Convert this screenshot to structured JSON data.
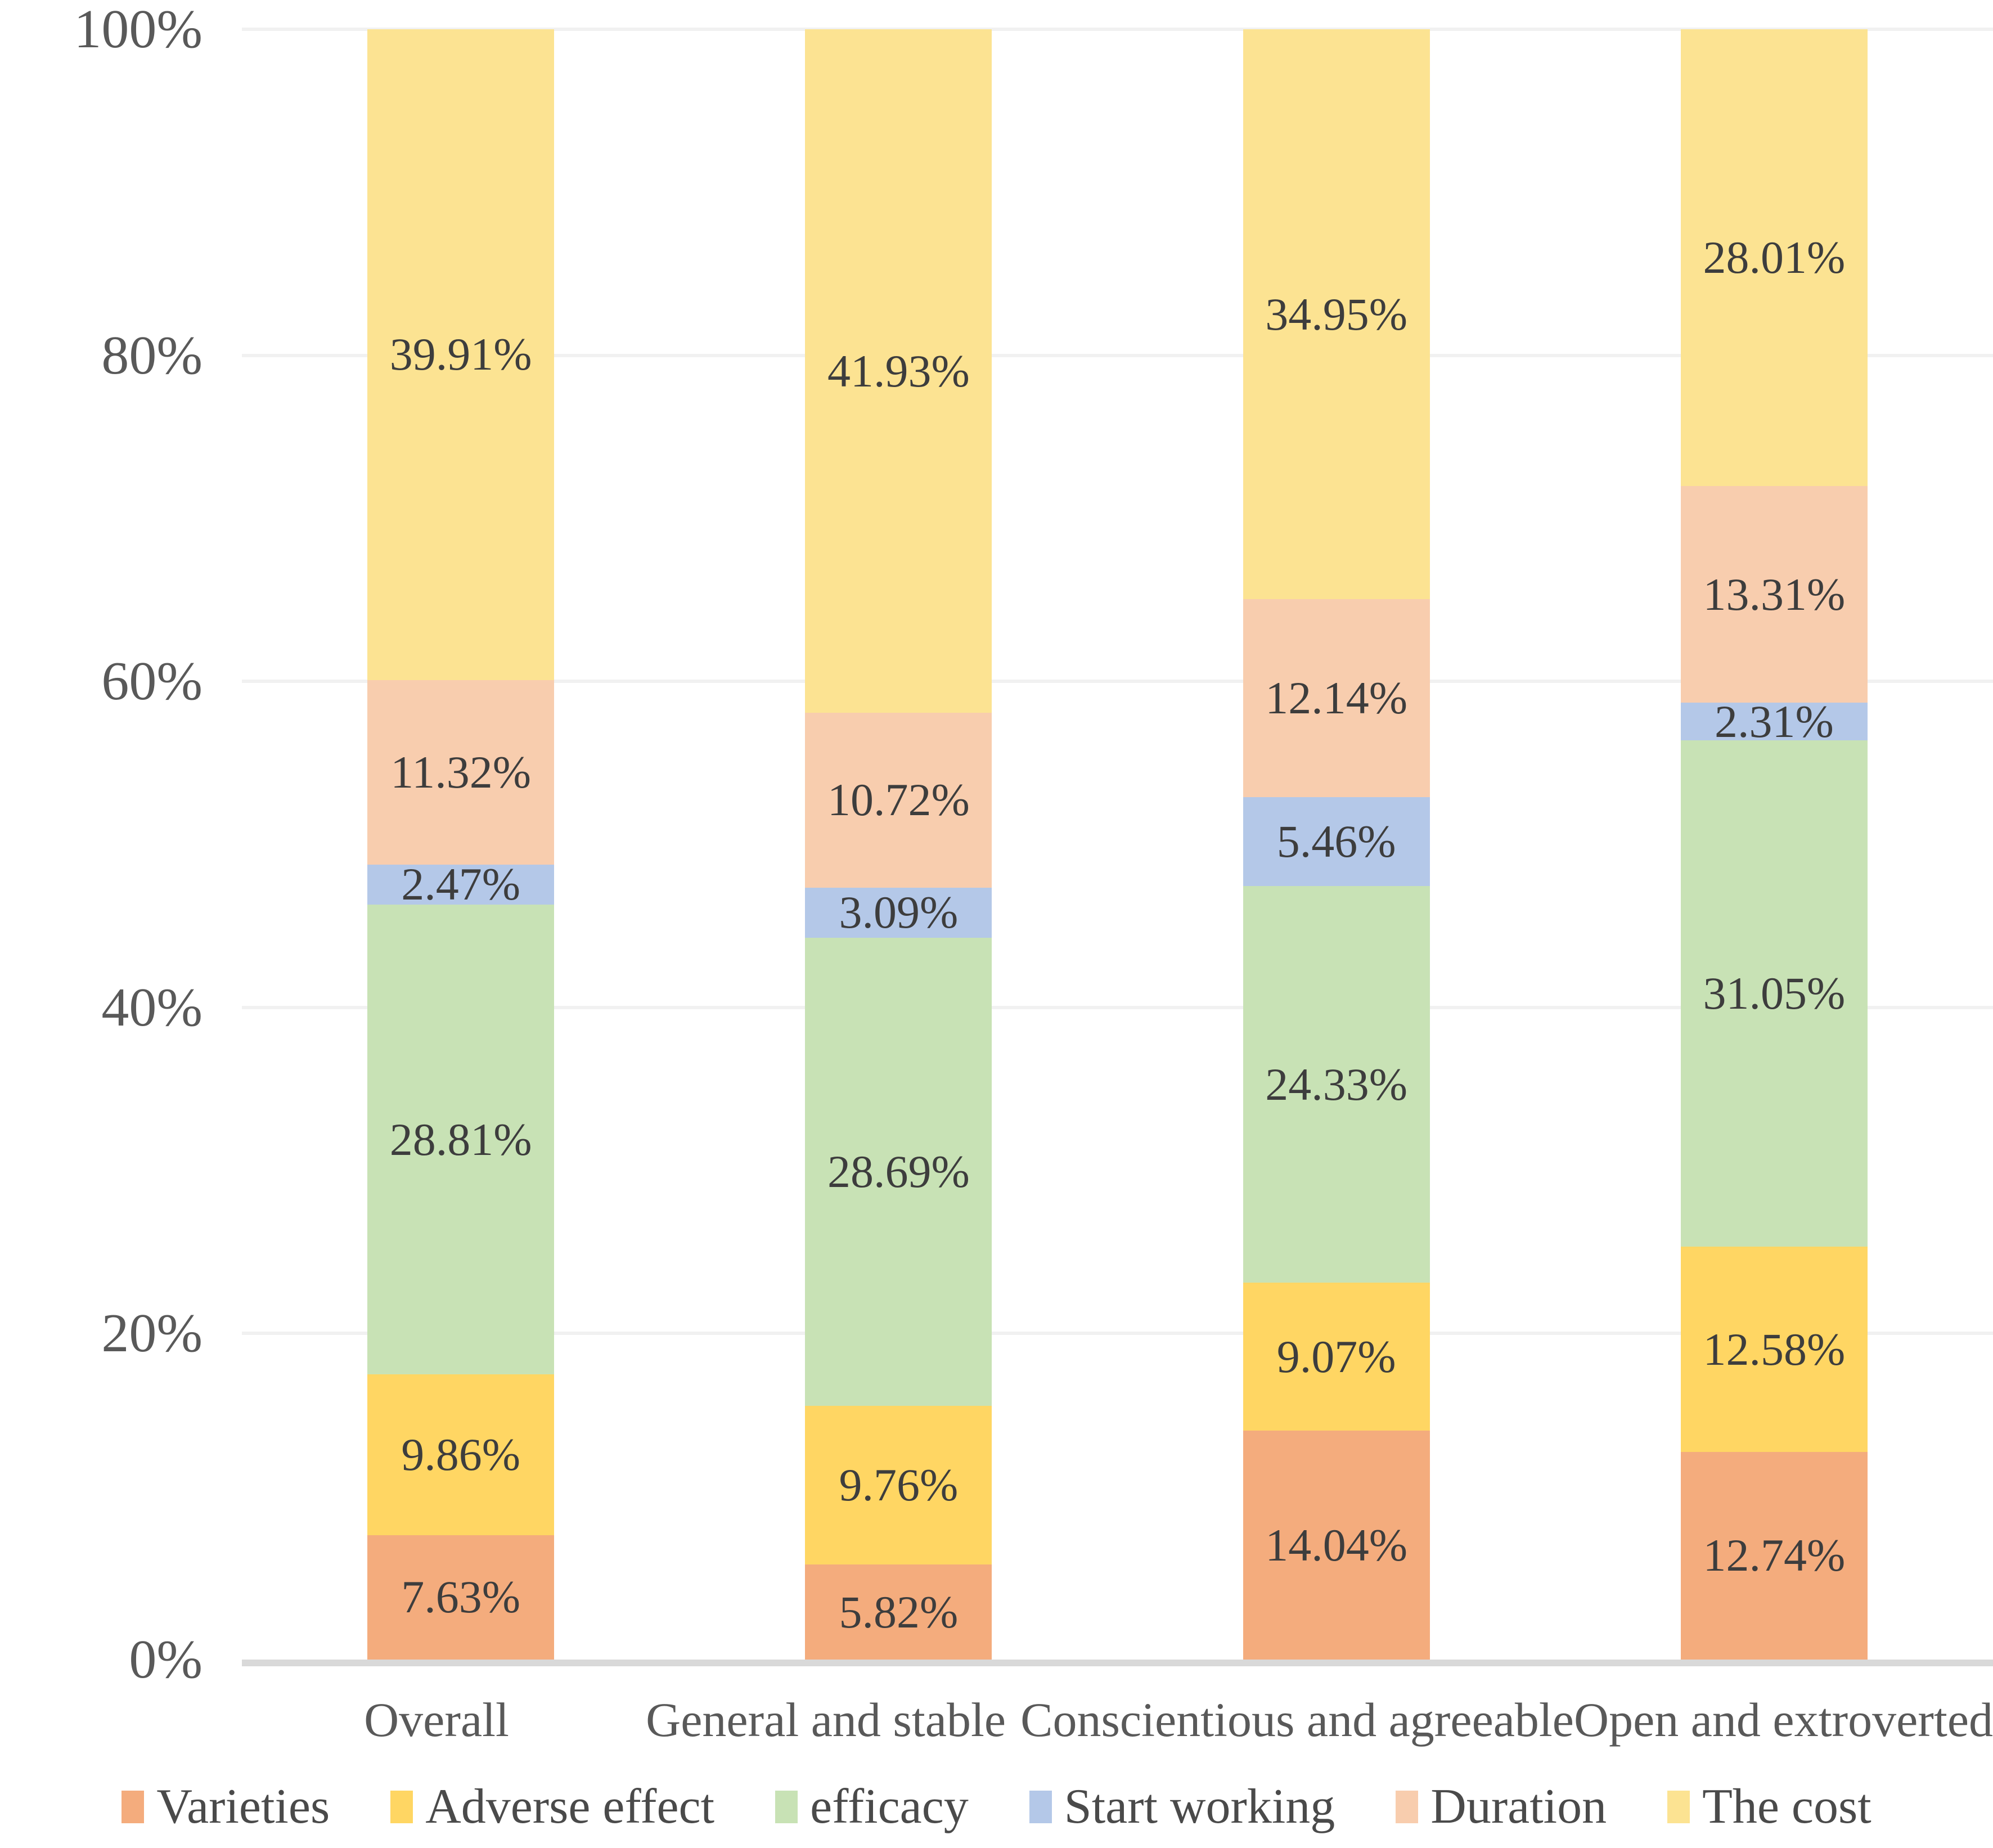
{
  "chart_data": {
    "type": "bar",
    "subtype": "stacked-100-percent",
    "orientation": "vertical",
    "title": "",
    "xlabel": "",
    "ylabel": "",
    "categories": [
      "Overall",
      "General and stable",
      "Conscientious and agreeable",
      "Open and extroverted"
    ],
    "series": [
      {
        "name": "Varieties",
        "color": "#F4AC7D",
        "values": [
          7.63,
          5.82,
          14.04,
          12.74
        ]
      },
      {
        "name": "Adverse effect",
        "color": "#FFD663",
        "values": [
          9.86,
          9.76,
          9.07,
          12.58
        ]
      },
      {
        "name": "efficacy",
        "color": "#C8E2B5",
        "values": [
          28.81,
          28.69,
          24.33,
          31.05
        ]
      },
      {
        "name": "Start working",
        "color": "#B4C8E8",
        "values": [
          2.47,
          3.09,
          5.46,
          2.31
        ]
      },
      {
        "name": "Duration",
        "color": "#F8CDAE",
        "values": [
          11.32,
          10.72,
          12.14,
          13.31
        ]
      },
      {
        "name": "The cost",
        "color": "#FCE392",
        "values": [
          39.91,
          41.93,
          34.95,
          28.01
        ]
      }
    ],
    "data_labels": {
      "visible": true,
      "format": "0.00%",
      "labels": [
        [
          "7.63%",
          "5.82%",
          "14.04%",
          "12.74%"
        ],
        [
          "9.86%",
          "9.76%",
          "9.07%",
          "12.58%"
        ],
        [
          "28.81%",
          "28.69%",
          "24.33%",
          "31.05%"
        ],
        [
          "2.47%",
          "3.09%",
          "5.46%",
          "2.31%"
        ],
        [
          "11.32%",
          "10.72%",
          "12.14%",
          "13.31%"
        ],
        [
          "39.91%",
          "41.93%",
          "34.95%",
          "28.01%"
        ]
      ]
    },
    "y_axis": {
      "min": 0,
      "max": 100,
      "tick_step": 20,
      "tick_labels": [
        "0%",
        "20%",
        "40%",
        "60%",
        "80%",
        "100%"
      ],
      "grid": true
    },
    "legend_position": "bottom",
    "style_colors": {
      "gridline": "#F1F1F1",
      "axis_line": "#D9D9D9",
      "tick_text": "#595959",
      "data_label_text": "#3D3D3D",
      "legend_text": "#4A4A4A",
      "background": "#FFFFFF"
    }
  }
}
